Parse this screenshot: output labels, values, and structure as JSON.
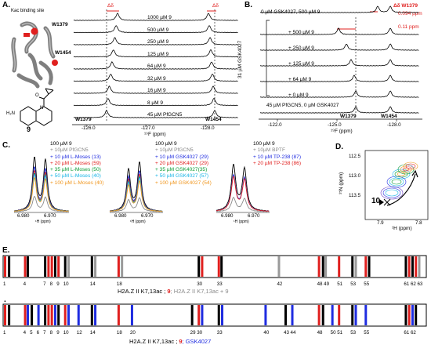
{
  "panels": {
    "a": "A.",
    "b": "B.",
    "c": "C.",
    "d": "D.",
    "e": "E.",
    "e2": "."
  },
  "a": {
    "binding_site": "Kac binding site",
    "residue_top": "W1379",
    "residue_bottom": "W1454",
    "compound": "9",
    "delta_left": "Δδ",
    "delta_right": "Δδ",
    "traces": [
      "1000 µM 9",
      "500 µM 9",
      "250 µM 9",
      "125 µM 9",
      "64 µM 9",
      "32 µM 9",
      "16 µM 9",
      "8 µM 9",
      "45 µM PfGCN5"
    ],
    "peak_left": "W1379",
    "peak_right": "W1454",
    "ticks": [
      "-126.0",
      "-127.0",
      "-128.0"
    ],
    "xlabel": "¹⁹F (ppm)"
  },
  "b": {
    "top_label": "0 µM GSK4027, 500 µM 9",
    "delta_title": "Δδ W1379",
    "delta_val1": "0.094 ppm",
    "delta_val2": "0.11 ppm",
    "traces": [
      "+ 500 µM 9",
      "+ 250 µM 9",
      "+ 125 µM 9",
      "+ 64 µM 9",
      "+ 0 µM 9"
    ],
    "side_label": "31 µM GSK4027",
    "bottom_label": "45 µM PfGCN5, 0 µM GSK4027",
    "peak_left": "W1379",
    "peak_right": "W1454",
    "ticks": [
      "-122.0",
      "-125.0",
      "-128.0"
    ],
    "xlabel": "¹⁹F (ppm)"
  },
  "c": {
    "legend1": [
      "100 µM 9",
      "+ 10µM PfGCN5",
      "+ 10 µM L-Moses (13)",
      "+ 20 µM L-Moses (59)",
      "+ 35 µM L-Moses (50)",
      "+ 50 µM L-Moses (40)",
      "+ 100 µM L-Moses (40)"
    ],
    "legend2": [
      "100 µM 9",
      "+ 10µM PfGCN5",
      "+ 10 µM GSK4027 (29)",
      "+ 20 µM GSK4027 (29)",
      "+ 35 µM GSK4027(35)",
      "+ 50 µM GSK4027 (57)",
      "+ 100 µM GSK4027 (54)"
    ],
    "legend3": [
      "100 µM 9",
      "+ 10µM BPTF",
      "+ 10 µM TP-238 (87)",
      "+ 20 µM TP-238 (86)"
    ],
    "ticks1": [
      "6.980",
      "6.970"
    ],
    "ticks2": [
      "6.980",
      "6.970"
    ],
    "ticks3": [
      "6.980",
      "6.970"
    ],
    "xlabel": "¹H (ppm)"
  },
  "d": {
    "yticks": [
      "112.5",
      "113.0",
      "113.5"
    ],
    "xticks": [
      "7.9",
      "7.8"
    ],
    "ylabel": "¹⁵N (ppm)",
    "xlabel": "¹H (ppm)",
    "marker": "10"
  },
  "e": {
    "row1_numbers": [
      "1",
      "4",
      "7",
      "8",
      "9",
      "10",
      "14",
      "18",
      "30",
      "33",
      "42",
      "48",
      "49",
      "51",
      "53",
      "55",
      "61",
      "62",
      "63"
    ],
    "row1_caption_black": "H2A.Z II K7,13ac ; ",
    "row1_caption_red": "9",
    "row1_caption_gray": "; H2A.Z II K7,13ac + 9",
    "row2_numbers": [
      "1",
      "4",
      "5",
      "6",
      "7",
      "8",
      "9",
      "10",
      "12",
      "14",
      "18",
      "20",
      "29",
      "30",
      "33",
      "40",
      "43",
      "44",
      "48",
      "50",
      "51",
      "53",
      "55",
      "61",
      "62"
    ],
    "row2_caption_black": "H2A.Z II K7,13ac ; ",
    "row2_caption_red": "9",
    "row2_caption_blue": "; GSK4027"
  },
  "colors": {
    "black": "#000000",
    "gray": "#8a8a8a",
    "blue": "#1f2ce0",
    "red": "#e0201f",
    "green": "#0a9a33",
    "cyan": "#18b4e6",
    "orange": "#f0961e"
  }
}
